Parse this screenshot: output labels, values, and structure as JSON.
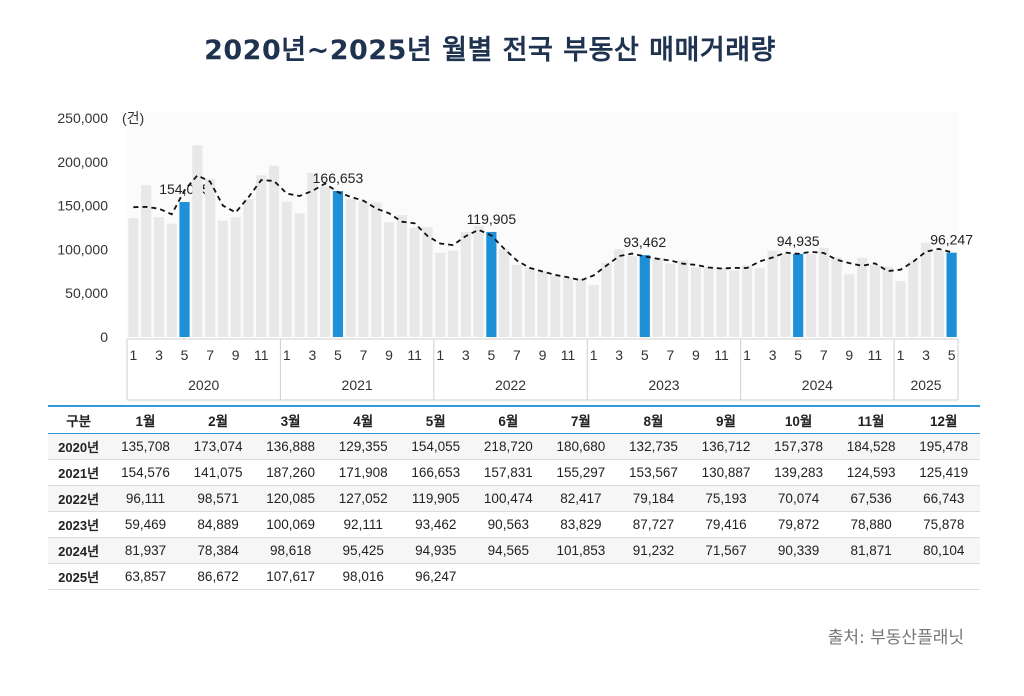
{
  "title": "2020년~2025년 월별 전국 부동산 매매거래량",
  "source": "출처: 부동산플래닛",
  "chart_data": {
    "type": "bar",
    "unit": "(건)",
    "ylim": [
      0,
      250000
    ],
    "yticks": [
      "250,000",
      "200,000",
      "150,000",
      "100,000",
      "50,000",
      "0"
    ],
    "ytick_values": [
      250000,
      200000,
      150000,
      100000,
      50000,
      0
    ],
    "months_labeled": [
      "1",
      "3",
      "5",
      "7",
      "9",
      "11"
    ],
    "years": [
      "2020",
      "2021",
      "2022",
      "2023",
      "2024",
      "2025"
    ],
    "highlight_month": 5,
    "colors": {
      "bar": "#e8e8e8",
      "highlight": "#1e90d8",
      "line": "#111111"
    },
    "trend_line": "dashed",
    "series": [
      {
        "year": "2020",
        "values": [
          135708,
          173074,
          136888,
          129355,
          154055,
          218720,
          180680,
          132735,
          136712,
          157378,
          184528,
          195478
        ]
      },
      {
        "year": "2021",
        "values": [
          154576,
          141075,
          187260,
          171908,
          166653,
          157831,
          155297,
          153567,
          130887,
          139283,
          124593,
          125419
        ]
      },
      {
        "year": "2022",
        "values": [
          96111,
          98571,
          120085,
          127052,
          119905,
          100474,
          82417,
          79184,
          75193,
          70074,
          67536,
          66743
        ]
      },
      {
        "year": "2023",
        "values": [
          59469,
          84889,
          100069,
          92111,
          93462,
          90563,
          83829,
          87727,
          79416,
          79872,
          78880,
          75878
        ]
      },
      {
        "year": "2024",
        "values": [
          81937,
          78384,
          98618,
          95425,
          94935,
          94565,
          101853,
          91232,
          71567,
          90339,
          81871,
          80104
        ]
      },
      {
        "year": "2025",
        "values": [
          63857,
          86672,
          107617,
          98016,
          96247
        ]
      }
    ],
    "data_labels": [
      "154,055",
      "166,653",
      "119,905",
      "93,462",
      "94,935",
      "96,247"
    ]
  },
  "table": {
    "headers": [
      "구분",
      "1월",
      "2월",
      "3월",
      "4월",
      "5월",
      "6월",
      "7월",
      "8월",
      "9월",
      "10월",
      "11월",
      "12월"
    ],
    "rows": [
      [
        "2020년",
        "135,708",
        "173,074",
        "136,888",
        "129,355",
        "154,055",
        "218,720",
        "180,680",
        "132,735",
        "136,712",
        "157,378",
        "184,528",
        "195,478"
      ],
      [
        "2021년",
        "154,576",
        "141,075",
        "187,260",
        "171,908",
        "166,653",
        "157,831",
        "155,297",
        "153,567",
        "130,887",
        "139,283",
        "124,593",
        "125,419"
      ],
      [
        "2022년",
        "96,111",
        "98,571",
        "120,085",
        "127,052",
        "119,905",
        "100,474",
        "82,417",
        "79,184",
        "75,193",
        "70,074",
        "67,536",
        "66,743"
      ],
      [
        "2023년",
        "59,469",
        "84,889",
        "100,069",
        "92,111",
        "93,462",
        "90,563",
        "83,829",
        "87,727",
        "79,416",
        "79,872",
        "78,880",
        "75,878"
      ],
      [
        "2024년",
        "81,937",
        "78,384",
        "98,618",
        "95,425",
        "94,935",
        "94,565",
        "101,853",
        "91,232",
        "71,567",
        "90,339",
        "81,871",
        "80,104"
      ],
      [
        "2025년",
        "63,857",
        "86,672",
        "107,617",
        "98,016",
        "96,247",
        "",
        "",
        "",
        "",
        "",
        "",
        ""
      ]
    ]
  }
}
